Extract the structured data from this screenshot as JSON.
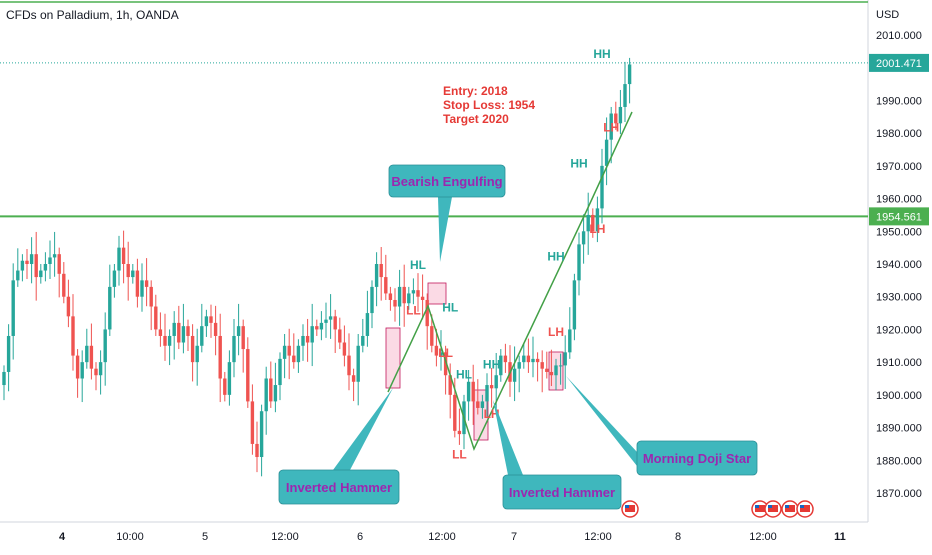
{
  "chart_title": "CFDs on Palladium, 1h, OANDA",
  "chart_data": {
    "type": "candlestick",
    "currency": "USD",
    "y_ticks": [
      1870,
      1880,
      1890,
      1900,
      1910,
      1920,
      1930,
      1940,
      1950,
      1960,
      1970,
      1980,
      1990,
      2000,
      2010
    ],
    "y_tick_labels": [
      "1870.000",
      "1880.000",
      "1890.000",
      "1900.000",
      "1910.000",
      "1920.000",
      "1930.000",
      "1940.000",
      "1950.000",
      "1960.000",
      "1970.000",
      "1980.000",
      "1990.000",
      "2000.000",
      "2010.000"
    ],
    "ylim": [
      1861,
      2018
    ],
    "x_labels": [
      "4",
      "10:00",
      "5",
      "12:00",
      "6",
      "12:00",
      "7",
      "12:00",
      "8",
      "12:00",
      "11"
    ],
    "x_bold": [
      true,
      false,
      false,
      false,
      false,
      false,
      false,
      false,
      false,
      false,
      true
    ],
    "current_price": "2001.471",
    "level_price": "1954.561",
    "level_value": 1954.561,
    "current_value": 2001.471,
    "top_line_value": 2019,
    "closes": [
      1907,
      1918,
      1935,
      1938,
      1941,
      1940,
      1943,
      1936,
      1938,
      1940,
      1942,
      1943,
      1937,
      1930,
      1924,
      1912,
      1905,
      1910,
      1915,
      1908,
      1906,
      1910,
      1920,
      1933,
      1938,
      1945,
      1940,
      1936,
      1938,
      1930,
      1935,
      1933,
      1927,
      1920,
      1918,
      1915,
      1918,
      1922,
      1916,
      1921,
      1918,
      1910,
      1915,
      1921,
      1924,
      1922,
      1918,
      1905,
      1900,
      1910,
      1918,
      1921,
      1914,
      1898,
      1885,
      1881,
      1895,
      1905,
      1898,
      1903,
      1911,
      1915,
      1912,
      1910,
      1915,
      1918,
      1916,
      1921,
      1920,
      1922,
      1923,
      1924,
      1920,
      1916,
      1912,
      1906,
      1904,
      1915,
      1918,
      1925,
      1933,
      1940,
      1936,
      1931,
      1929,
      1927,
      1933,
      1928,
      1931,
      1932,
      1930,
      1929,
      1921,
      1915,
      1912,
      1913,
      1906,
      1900,
      1889,
      1888,
      1898,
      1904,
      1898,
      1896,
      1898,
      1903,
      1902,
      1906,
      1912,
      1910,
      1904,
      1908,
      1910,
      1912,
      1910,
      1911,
      1910,
      1908,
      1907,
      1906,
      1909,
      1909,
      1913,
      1920,
      1935,
      1946,
      1950,
      1955,
      1950,
      1957,
      1970,
      1978,
      1986,
      1983,
      1988,
      1995,
      2001
    ],
    "annotations": {
      "trade": [
        "Entry: 2018",
        "Stop Loss: 1954",
        "Target 2020"
      ],
      "callouts": [
        "Bearish Engulfing",
        "Inverted Hammer",
        "Inverted Hammer",
        "Morning Doji Star"
      ],
      "swing_labels": [
        {
          "t": "HL",
          "c": "green",
          "i": 90,
          "v": 1938.5
        },
        {
          "t": "LL",
          "c": "red",
          "i": 89,
          "v": 1924.5
        },
        {
          "t": "HL",
          "c": "green",
          "i": 97,
          "v": 1925.5
        },
        {
          "t": "LL",
          "c": "red",
          "i": 96,
          "v": 1911.5
        },
        {
          "t": "HL",
          "c": "green",
          "i": 100,
          "v": 1905
        },
        {
          "t": "LL",
          "c": "red",
          "i": 99,
          "v": 1880.5
        },
        {
          "t": "LH",
          "c": "red",
          "i": 106,
          "v": 1893
        },
        {
          "t": "HH",
          "c": "green",
          "i": 106,
          "v": 1908
        },
        {
          "t": "LH",
          "c": "red",
          "i": 120,
          "v": 1918
        },
        {
          "t": "HH",
          "c": "green",
          "i": 120,
          "v": 1941
        },
        {
          "t": "LH",
          "c": "red",
          "i": 129,
          "v": 1949.5
        },
        {
          "t": "HH",
          "c": "green",
          "i": 125,
          "v": 1969.5
        },
        {
          "t": "LH",
          "c": "red",
          "i": 132,
          "v": 1980.5
        },
        {
          "t": "HH",
          "c": "green",
          "i": 130,
          "v": 2003
        }
      ]
    }
  },
  "colors": {
    "up": "#26a69a",
    "down": "#ef5350",
    "level": "#4caf50",
    "callout_fill": "#3fb7bd",
    "callout_text": "#9c27b0",
    "note": "#e53935",
    "zigzag": "#43a047"
  }
}
